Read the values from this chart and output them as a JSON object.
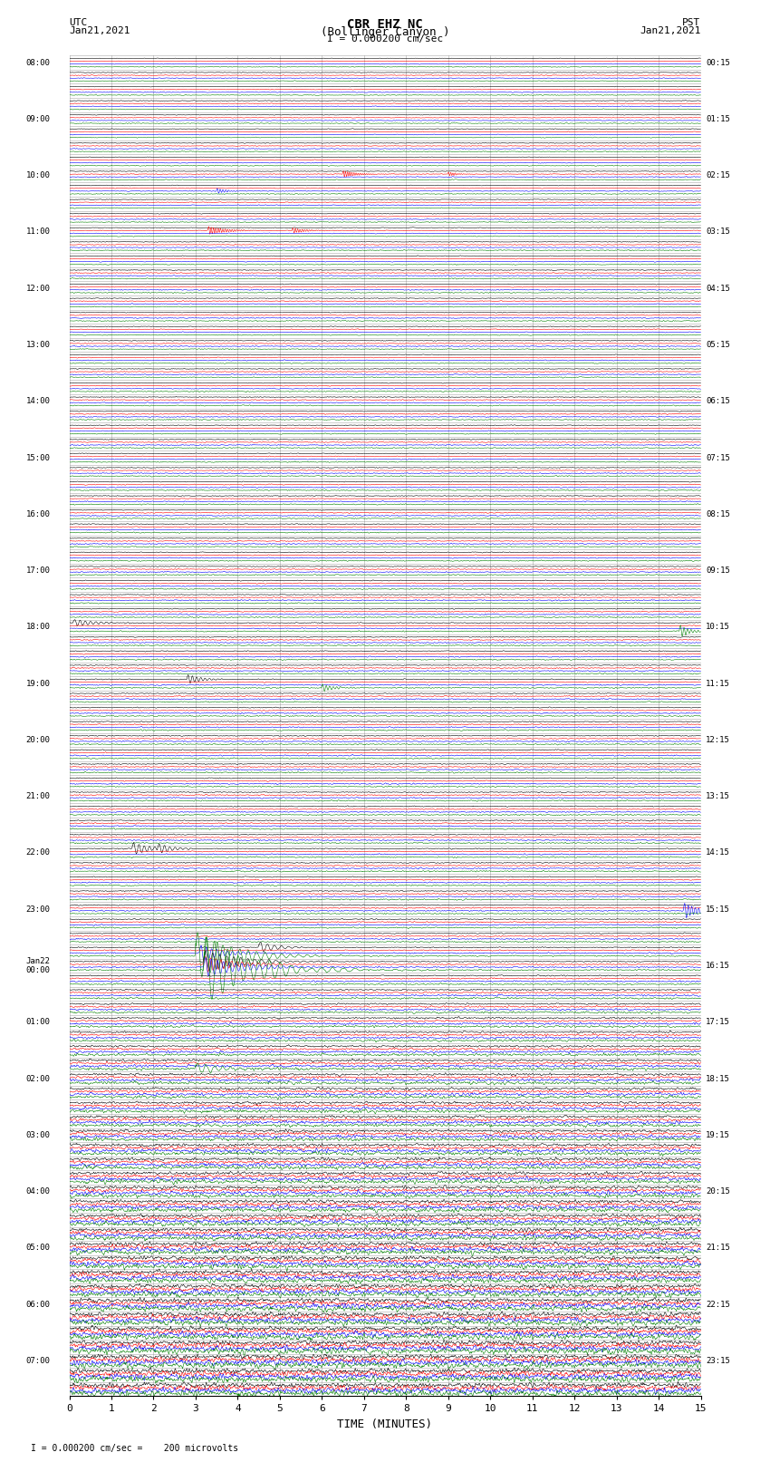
{
  "title_line1": "CBR EHZ NC",
  "title_line2": "(Bollinger Canyon )",
  "title_line3": "I = 0.000200 cm/sec",
  "left_header_line1": "UTC",
  "left_header_line2": "Jan21,2021",
  "right_header_line1": "PST",
  "right_header_line2": "Jan21,2021",
  "xlabel": "TIME (MINUTES)",
  "footer": "I = 0.000200 cm/sec =    200 microvolts",
  "utc_labels": [
    "08:00",
    "",
    "",
    "",
    "09:00",
    "",
    "",
    "",
    "10:00",
    "",
    "",
    "",
    "11:00",
    "",
    "",
    "",
    "12:00",
    "",
    "",
    "",
    "13:00",
    "",
    "",
    "",
    "14:00",
    "",
    "",
    "",
    "15:00",
    "",
    "",
    "",
    "16:00",
    "",
    "",
    "",
    "17:00",
    "",
    "",
    "",
    "18:00",
    "",
    "",
    "",
    "19:00",
    "",
    "",
    "",
    "20:00",
    "",
    "",
    "",
    "21:00",
    "",
    "",
    "",
    "22:00",
    "",
    "",
    "",
    "23:00",
    "",
    "",
    "",
    "Jan22\n00:00",
    "",
    "",
    "",
    "01:00",
    "",
    "",
    "",
    "02:00",
    "",
    "",
    "",
    "03:00",
    "",
    "",
    "",
    "04:00",
    "",
    "",
    "",
    "05:00",
    "",
    "",
    "",
    "06:00",
    "",
    "",
    "",
    "07:00",
    "",
    ""
  ],
  "pst_labels": [
    "00:15",
    "",
    "",
    "",
    "01:15",
    "",
    "",
    "",
    "02:15",
    "",
    "",
    "",
    "03:15",
    "",
    "",
    "",
    "04:15",
    "",
    "",
    "",
    "05:15",
    "",
    "",
    "",
    "06:15",
    "",
    "",
    "",
    "07:15",
    "",
    "",
    "",
    "08:15",
    "",
    "",
    "",
    "09:15",
    "",
    "",
    "",
    "10:15",
    "",
    "",
    "",
    "11:15",
    "",
    "",
    "",
    "12:15",
    "",
    "",
    "",
    "13:15",
    "",
    "",
    "",
    "14:15",
    "",
    "",
    "",
    "15:15",
    "",
    "",
    "",
    "16:15",
    "",
    "",
    "",
    "17:15",
    "",
    "",
    "",
    "18:15",
    "",
    "",
    "",
    "19:15",
    "",
    "",
    "",
    "20:15",
    "",
    "",
    "",
    "21:15",
    "",
    "",
    "",
    "22:15",
    "",
    "",
    "",
    "23:15",
    "",
    ""
  ],
  "trace_colors": [
    "black",
    "red",
    "blue",
    "green"
  ],
  "n_hours": 24,
  "n_minutes": 15,
  "bg_color": "white",
  "grid_color": "#888888",
  "noise_seed": 12345,
  "fig_width": 8.5,
  "fig_height": 16.13,
  "dpi": 100
}
